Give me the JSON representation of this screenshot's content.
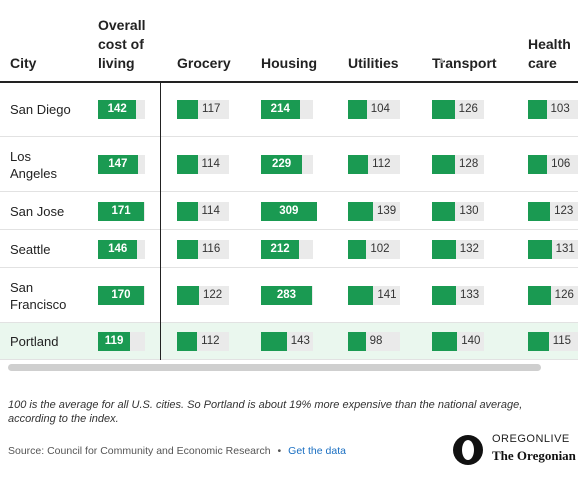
{
  "table": {
    "columns": [
      "City",
      "Overall cost of living",
      "Grocery",
      "Housing",
      "Utilities",
      "Transport",
      "Health care"
    ],
    "rows": [
      [
        "San Diego",
        142,
        117,
        214,
        104,
        126,
        103
      ],
      [
        "Los Angeles",
        147,
        114,
        229,
        112,
        128,
        106
      ],
      [
        "San Jose",
        171,
        114,
        309,
        139,
        130,
        123
      ],
      [
        "Seattle",
        146,
        116,
        212,
        102,
        132,
        131
      ],
      [
        "San Francisco",
        170,
        122,
        283,
        141,
        133,
        126
      ],
      [
        "Portland",
        119,
        112,
        143,
        98,
        140,
        115
      ]
    ],
    "highlight_row": 5
  },
  "footer": {
    "note": "100 is the average for all U.S. cities. So Portland is about 19% more expensive than the national average, according to the index.",
    "source": "Source: Council for Community and Economic Research",
    "link": "Get the data",
    "logo_top": "OREGONLIVE",
    "logo_bottom": "The Oregonian"
  }
}
